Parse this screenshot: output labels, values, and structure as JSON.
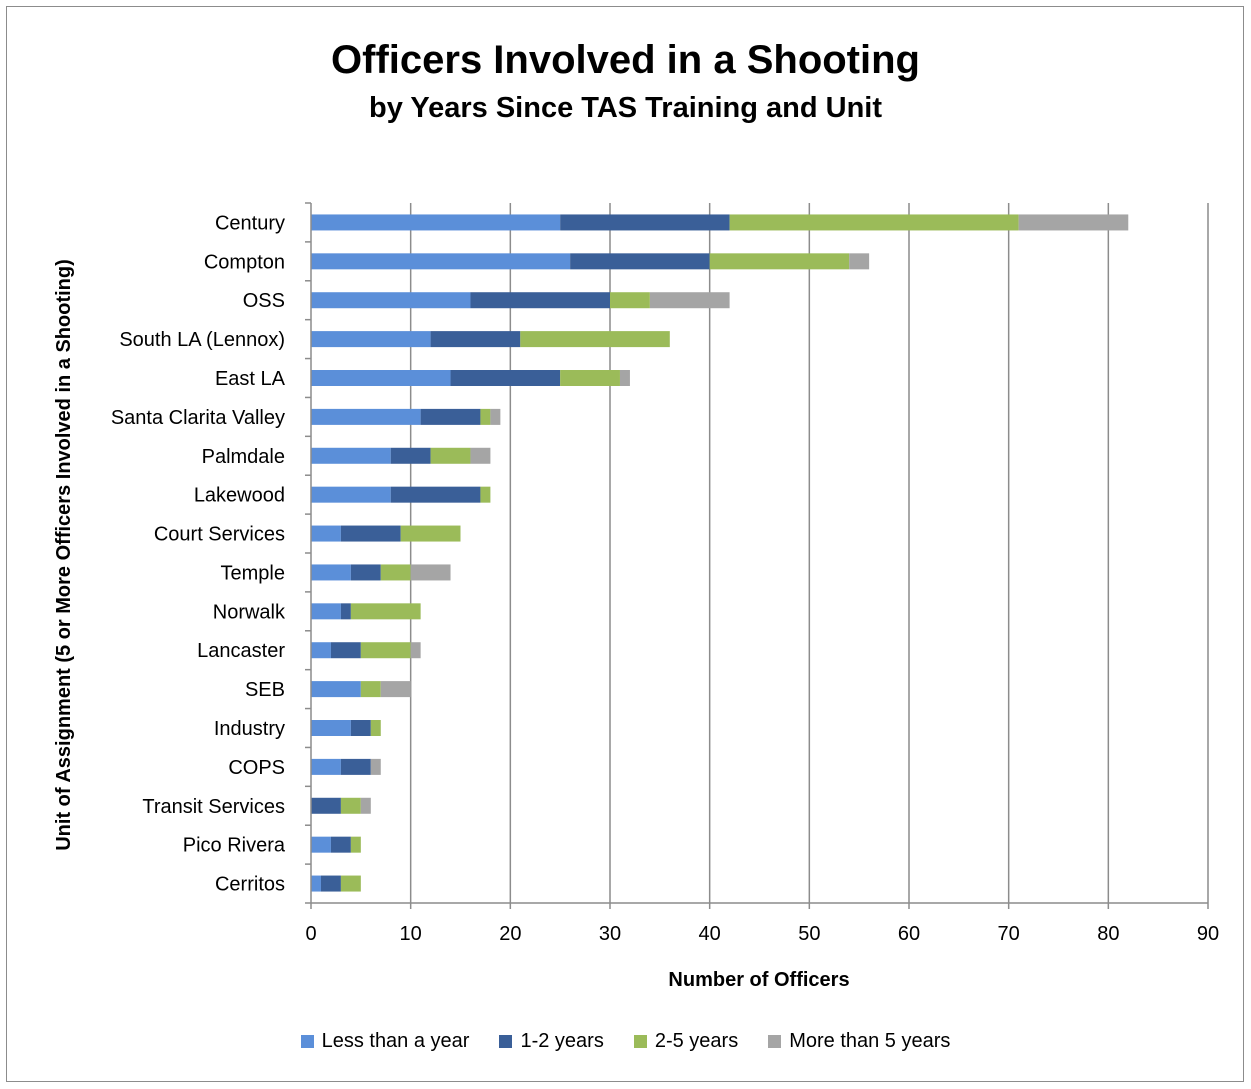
{
  "chart_data": {
    "type": "bar",
    "orientation": "horizontal",
    "stacked": true,
    "title": "Officers Involved in a Shooting",
    "subtitle": "by Years Since TAS  Training and Unit",
    "xlabel": "Number of Officers",
    "ylabel": "Unit of Assignment (5 or More Officers Involved in a Shooting)",
    "xlim": [
      0,
      90
    ],
    "xticks": [
      "0",
      "10",
      "20",
      "30",
      "40",
      "50",
      "60",
      "70",
      "80",
      "90"
    ],
    "grid": "vertical",
    "legend_position": "bottom",
    "categories": [
      "Century",
      "Compton",
      "OSS",
      "South LA (Lennox)",
      "East LA",
      "Santa Clarita Valley",
      "Palmdale",
      "Lakewood",
      "Court Services",
      "Temple",
      "Norwalk",
      "Lancaster",
      "SEB",
      "Industry",
      "COPS",
      "Transit Services",
      "Pico Rivera",
      "Cerritos"
    ],
    "series": [
      {
        "name": "Less than a year",
        "color": "#5b8fd9",
        "values": [
          25,
          26,
          16,
          12,
          14,
          11,
          8,
          8,
          3,
          4,
          3,
          2,
          5,
          4,
          3,
          0,
          2,
          1
        ]
      },
      {
        "name": "1-2 years",
        "color": "#3a5f98",
        "values": [
          17,
          14,
          14,
          9,
          11,
          6,
          4,
          9,
          6,
          3,
          1,
          3,
          0,
          2,
          3,
          3,
          2,
          2
        ]
      },
      {
        "name": "2-5 years",
        "color": "#9bbb59",
        "values": [
          29,
          14,
          4,
          15,
          6,
          1,
          4,
          1,
          6,
          3,
          7,
          5,
          2,
          1,
          0,
          2,
          1,
          2
        ]
      },
      {
        "name": "More than 5 years",
        "color": "#a5a5a5",
        "values": [
          11,
          2,
          8,
          0,
          1,
          1,
          2,
          0,
          0,
          4,
          0,
          1,
          3,
          0,
          1,
          1,
          0,
          0
        ]
      }
    ]
  }
}
